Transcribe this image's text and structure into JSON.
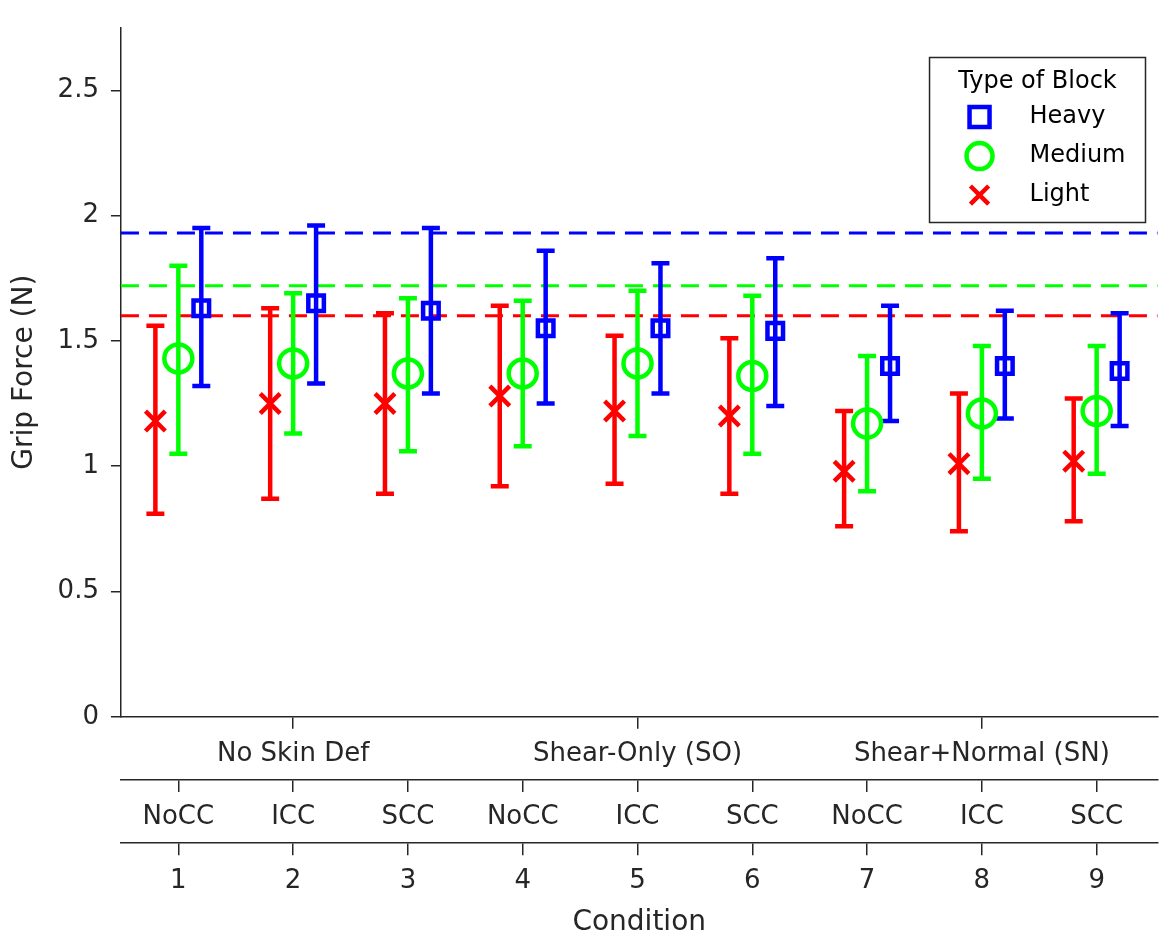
{
  "chart_data": {
    "type": "scatter",
    "xlabel": "Condition",
    "ylabel": "Grip Force (N)",
    "legend_title": "Type of Block",
    "legend": "top right",
    "grid": false,
    "xlim": [
      0.5,
      9.53
    ],
    "xticks": [
      1,
      2,
      3,
      4,
      5,
      6,
      7,
      8,
      9
    ],
    "annotations": [
      {
        "text": "NoCC",
        "x": 1
      },
      {
        "text": "ICC",
        "x": 2
      },
      {
        "text": "SCC",
        "x": 3
      },
      {
        "text": "NoCC",
        "x": 4
      },
      {
        "text": "ICC",
        "x": 5
      },
      {
        "text": "SCC",
        "x": 6
      },
      {
        "text": "NoCC",
        "x": 7
      },
      {
        "text": "ICC",
        "x": 8
      },
      {
        "text": "SCC",
        "x": 9
      },
      {
        "text": "No Skin Def",
        "x": 2
      },
      {
        "text": "Shear-Only (SO)",
        "x": 5
      },
      {
        "text": "Shear+Normal (SN)",
        "x": 8
      }
    ],
    "ylim": [
      0,
      2.75
    ],
    "yticks": [
      0,
      0.5,
      1,
      1.5,
      2,
      2.5
    ],
    "ref_lines": [
      {
        "axis": "y",
        "value": 1.93,
        "color": "#0000ff",
        "line_style": "dashed"
      },
      {
        "axis": "y",
        "value": 1.72,
        "color": "#00ff00",
        "line_style": "dashed"
      },
      {
        "axis": "y",
        "value": 1.6,
        "color": "#ff0000",
        "line_style": "dashed"
      }
    ],
    "series": [
      {
        "name": "Heavy",
        "color": "#0000ff",
        "marker": "square",
        "x": [
          1.2,
          2.2,
          3.2,
          4.2,
          5.2,
          6.2,
          7.2,
          8.2,
          9.2
        ],
        "values": [
          1.63,
          1.65,
          1.62,
          1.55,
          1.55,
          1.54,
          1.4,
          1.4,
          1.38
        ],
        "errors": [
          [
            1.32,
            1.95
          ],
          [
            1.33,
            1.96
          ],
          [
            1.29,
            1.95
          ],
          [
            1.25,
            1.86
          ],
          [
            1.29,
            1.81
          ],
          [
            1.24,
            1.83
          ],
          [
            1.18,
            1.64
          ],
          [
            1.19,
            1.62
          ],
          [
            1.16,
            1.61
          ]
        ]
      },
      {
        "name": "Medium",
        "color": "#00ff00",
        "marker": "circle",
        "x": [
          1,
          2,
          3,
          4,
          5,
          6,
          7,
          8,
          9
        ],
        "values": [
          1.43,
          1.41,
          1.37,
          1.37,
          1.41,
          1.36,
          1.17,
          1.21,
          1.22
        ],
        "errors": [
          [
            1.05,
            1.8
          ],
          [
            1.13,
            1.69
          ],
          [
            1.06,
            1.67
          ],
          [
            1.08,
            1.66
          ],
          [
            1.12,
            1.7
          ],
          [
            1.05,
            1.68
          ],
          [
            0.9,
            1.44
          ],
          [
            0.95,
            1.48
          ],
          [
            0.97,
            1.48
          ]
        ]
      },
      {
        "name": "Light",
        "color": "#ff0000",
        "marker": "cross",
        "x": [
          0.8,
          1.8,
          2.8,
          3.8,
          4.8,
          5.8,
          6.8,
          7.8,
          8.8
        ],
        "values": [
          1.18,
          1.25,
          1.25,
          1.28,
          1.22,
          1.2,
          0.98,
          1.01,
          1.02
        ],
        "errors": [
          [
            0.81,
            1.56
          ],
          [
            0.87,
            1.63
          ],
          [
            0.89,
            1.61
          ],
          [
            0.92,
            1.64
          ],
          [
            0.93,
            1.52
          ],
          [
            0.89,
            1.51
          ],
          [
            0.76,
            1.22
          ],
          [
            0.74,
            1.29
          ],
          [
            0.78,
            1.27
          ]
        ]
      }
    ]
  }
}
